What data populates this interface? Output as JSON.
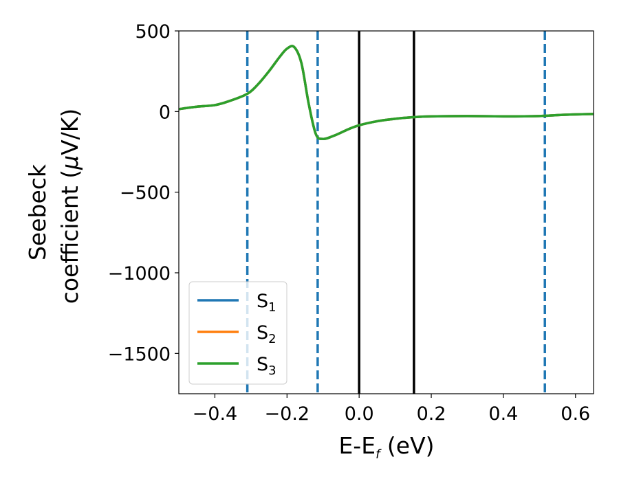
{
  "chart_data": {
    "type": "line",
    "title": "",
    "xlabel": {
      "main": "E-E",
      "sub": "f",
      "tail": " (eV)"
    },
    "ylabel": {
      "line1": "Seebeck",
      "line2_pre": "coefficient  (",
      "mu": "μ",
      "line2_post": "V/K)"
    },
    "xlim": [
      -0.5,
      0.65
    ],
    "ylim": [
      -1750,
      500
    ],
    "xticks": [
      -0.4,
      -0.2,
      0.0,
      0.2,
      0.4,
      0.6
    ],
    "xtick_labels": [
      "−0.4",
      "−0.2",
      "0.0",
      "0.2",
      "0.4",
      "0.6"
    ],
    "yticks": [
      500,
      0,
      -500,
      -1000,
      -1500
    ],
    "ytick_labels": [
      "500",
      "0",
      "−500",
      "−1000",
      "−1500"
    ],
    "vlines_dashed": [
      -0.31,
      -0.115,
      0.515
    ],
    "vlines_solid": [
      0.0,
      0.152
    ],
    "colors": {
      "s1": "#1f77b4",
      "s2": "#ff7f0e",
      "s3": "#2ca02c",
      "vline_solid": "#000000",
      "vline_dashed": "#1f77b4"
    },
    "legend_position": "lower-left",
    "series": [
      {
        "name": "S1",
        "label_main": "S",
        "label_sub": "1",
        "color": "#1f77b4",
        "x": [
          -0.5,
          -0.45,
          -0.4,
          -0.36,
          -0.31,
          -0.28,
          -0.25,
          -0.22,
          -0.2,
          -0.18,
          -0.16,
          -0.14,
          -0.12,
          -0.1,
          -0.07,
          -0.03,
          0.0,
          0.05,
          0.1,
          0.15,
          0.2,
          0.3,
          0.4,
          0.5,
          0.55,
          0.6,
          0.65
        ],
        "y": [
          15,
          30,
          40,
          65,
          110,
          170,
          250,
          340,
          390,
          400,
          300,
          50,
          -140,
          -170,
          -150,
          -110,
          -85,
          -60,
          -45,
          -35,
          -30,
          -28,
          -30,
          -28,
          -22,
          -18,
          -15
        ]
      },
      {
        "name": "S2",
        "label_main": "S",
        "label_sub": "2",
        "color": "#ff7f0e",
        "x": [
          -0.5,
          -0.45,
          -0.4,
          -0.36,
          -0.31,
          -0.28,
          -0.25,
          -0.22,
          -0.2,
          -0.18,
          -0.16,
          -0.14,
          -0.12,
          -0.1,
          -0.07,
          -0.03,
          0.0,
          0.05,
          0.1,
          0.15,
          0.2,
          0.3,
          0.4,
          0.5,
          0.55,
          0.6,
          0.65
        ],
        "y": [
          15,
          30,
          40,
          65,
          110,
          170,
          250,
          340,
          390,
          400,
          300,
          50,
          -140,
          -170,
          -150,
          -110,
          -85,
          -60,
          -45,
          -35,
          -30,
          -28,
          -30,
          -28,
          -22,
          -18,
          -15
        ]
      },
      {
        "name": "S3",
        "label_main": "S",
        "label_sub": "3",
        "color": "#2ca02c",
        "x": [
          -0.5,
          -0.45,
          -0.4,
          -0.36,
          -0.31,
          -0.28,
          -0.25,
          -0.22,
          -0.2,
          -0.18,
          -0.16,
          -0.14,
          -0.12,
          -0.1,
          -0.07,
          -0.03,
          0.0,
          0.05,
          0.1,
          0.15,
          0.2,
          0.3,
          0.4,
          0.5,
          0.55,
          0.6,
          0.65
        ],
        "y": [
          15,
          30,
          40,
          65,
          110,
          170,
          250,
          340,
          390,
          400,
          300,
          50,
          -140,
          -170,
          -150,
          -110,
          -85,
          -60,
          -45,
          -35,
          -30,
          -28,
          -30,
          -28,
          -22,
          -18,
          -15
        ]
      }
    ]
  }
}
